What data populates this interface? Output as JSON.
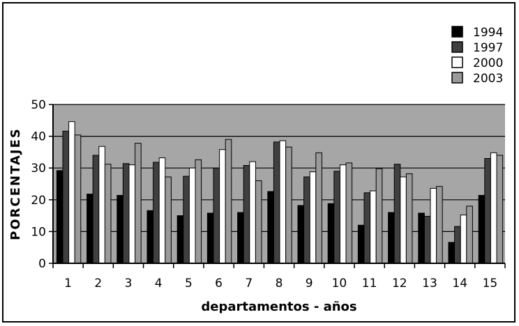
{
  "chart_data": {
    "type": "bar",
    "title": "",
    "xlabel": "departamentos - años",
    "ylabel": "PORCENTAJES",
    "ylim": [
      0,
      50
    ],
    "yticks": [
      0,
      10,
      20,
      30,
      40,
      50
    ],
    "grid": true,
    "legend_position": "top-right",
    "categories": [
      "1",
      "2",
      "3",
      "4",
      "5",
      "6",
      "7",
      "8",
      "9",
      "10",
      "11",
      "12",
      "13",
      "14",
      "15"
    ],
    "series": [
      {
        "name": "1994",
        "color": "#000000",
        "values": [
          29.2,
          21.8,
          21.4,
          16.6,
          15.0,
          15.8,
          16.0,
          22.6,
          18.2,
          18.8,
          12.0,
          16.0,
          15.8,
          6.6,
          21.4
        ]
      },
      {
        "name": "1997",
        "color": "#404040",
        "values": [
          41.6,
          34.0,
          31.4,
          31.8,
          27.4,
          30.0,
          30.8,
          38.2,
          27.2,
          29.0,
          22.2,
          31.2,
          14.8,
          11.6,
          33.0
        ]
      },
      {
        "name": "2000",
        "color": "#ffffff",
        "values": [
          44.6,
          36.8,
          31.0,
          33.2,
          30.0,
          35.8,
          32.0,
          38.6,
          28.8,
          31.0,
          22.8,
          27.2,
          23.6,
          15.2,
          34.8
        ]
      },
      {
        "name": "2003",
        "color": "#9a9a9a",
        "values": [
          40.4,
          31.2,
          37.8,
          27.2,
          32.6,
          39.0,
          26.0,
          36.6,
          34.8,
          31.6,
          29.8,
          28.2,
          24.2,
          18.0,
          34.0
        ]
      }
    ],
    "plot_background": "#a6a6a6"
  }
}
